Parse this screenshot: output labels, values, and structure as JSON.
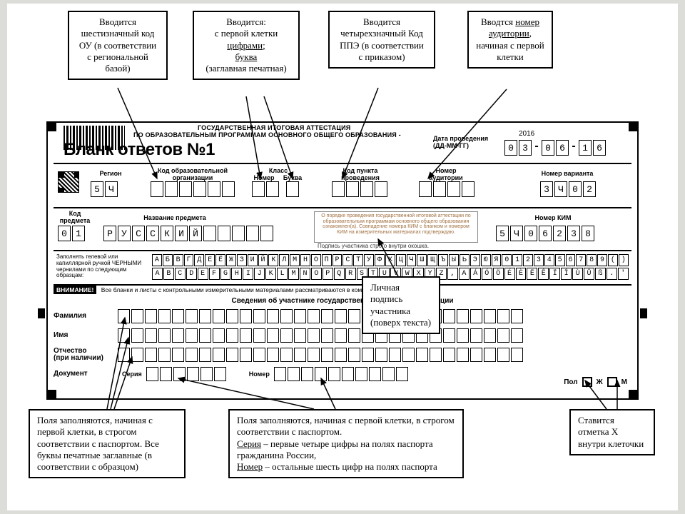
{
  "callouts": {
    "c1": "Вводится шестизначный код ОУ (в соответствии с региональной базой)",
    "c2_a": "Вводится:\nс первой клетки ",
    "c2_u1": "цифрами;",
    "c2_b": "\n",
    "c2_u2": "буква",
    "c2_c": "\n(заглавная печатная)",
    "c3": "Вводится четырехзначный Код ППЭ (в соответствии с приказом)",
    "c4_a": "Вводтся ",
    "c4_u": "номер аудитории",
    "c4_b": ", начиная с первой клетки",
    "c5": "Личная подпись участника (поверх текста)",
    "c6": "Поля заполняются, начиная с первой клетки, в строгом соответствии с паспортом. Все буквы печатные заглавные (в соответствии с образцом)",
    "c7_a": "Поля заполняются, начиная с первой клетки, в строгом соответствии с паспортом.\n",
    "c7_u1": "Серия",
    "c7_b": " – первые четыре цифры на полях паспорта гражданина России,\n",
    "c7_u2": "Номер",
    "c7_c": " – остальные шесть цифр на полях паспорта",
    "c8": "Ставится отметка   X внутри клеточки"
  },
  "form": {
    "gov1": "ГОСУДАРСТВЕННАЯ ИТОГОВАЯ АТТЕСТАЦИЯ",
    "gov2": "ПО ОБРАЗОВАТЕЛЬНЫМ ПРОГРАММАМ ОСНОВНОГО ОБЩЕГО ОБРАЗОВАНИЯ -",
    "year": "2016",
    "title": "Бланк ответов №1",
    "date_label": "Дата проведения\n(ДД-ММ-ГГ)",
    "date": [
      "0",
      "3",
      "-",
      "0",
      "6",
      "-",
      "1",
      "6"
    ],
    "labels": {
      "region": "Регион",
      "org": "Код образовательной\nорганизации",
      "klass": "Класс",
      "nomer": "Номер",
      "bukva": "Буква",
      "ppe": "Код пункта\nпроведения",
      "aud": "Номер\nаудитории",
      "variant": "Номер варианта",
      "subj_code": "Код\nпредмета",
      "subj_name": "Название предмета",
      "kim": "Номер КИМ"
    },
    "region": [
      "5",
      "Ч"
    ],
    "org_cells": 6,
    "class_num_cells": 2,
    "class_let_cells": 1,
    "ppe_cells": 4,
    "aud_cells": 4,
    "variant": [
      "3",
      "Ч",
      "0",
      "2"
    ],
    "subject_code": [
      "0",
      "1"
    ],
    "subject_name": [
      "Р",
      "У",
      "С",
      "С",
      "К",
      "И",
      "Й"
    ],
    "subject_name_cells": 12,
    "kim": [
      "5",
      "Ч",
      "0",
      "6",
      "2",
      "3",
      "8"
    ],
    "notice": "О порядке проведения государственной итоговой аттестации по образовательным программам основного общего образования ознакомлен(а). Совпадение номера КИМ с бланком и номером КИМ на измерительных материалах подтверждаю.",
    "sign_here": "Подпись участника строго внутри окошка.",
    "sample_text": "Заполнять гелевой или капиллярной ручкой ЧЕРНЫМИ чернилами по следующим образцам:",
    "alpha1": "АБВГДЕЁЖЗИЙКЛМНОПРСТУФХЦЧШЩЪЫЬЭЮЯ0123456789()",
    "alpha2": "ABCDEFGHIJKLMNOPQRSTUVWXYZ,АÁÓÖÉÈËÊÏÎÙÛß.'",
    "warn_tag": "ВНИМАНИЕ!",
    "warn_text": "Все бланки и листы с контрольными измерительными материалами рассматриваются в комплекте.",
    "section_title": "Сведения об участнике государственной итоговой аттестации",
    "p_labels": {
      "fam": "Фамилия",
      "name": "Имя",
      "otch": "Отчество\n(при наличии)",
      "doc": "Документ",
      "ser": "Серия",
      "num": "Номер",
      "sex": "Пол",
      "f": "Ж",
      "m": "М"
    },
    "name_cells": 30,
    "ser_cells": 6,
    "num_cells": 10
  },
  "colors": {
    "bg": "#dcddd8",
    "ink": "#000000"
  }
}
